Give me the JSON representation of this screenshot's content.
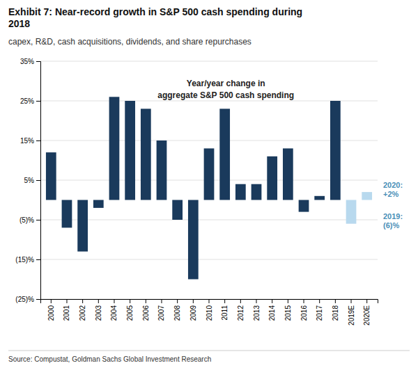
{
  "chart_data": {
    "type": "bar",
    "title": "Exhibit 7: Near-record growth in S&P 500 cash spending during\n2018",
    "subtitle": "capex, R&D, cash acquisitions, dividends, and share repurchases",
    "source": "Source: Compustat, Goldman Sachs Global Investment Research",
    "annotations": [
      "Year/year change in\naggregate S&P 500 cash spending",
      "2019:\n(6)%",
      "2020:\n+2%"
    ],
    "categories": [
      "2000",
      "2001",
      "2002",
      "2003",
      "2004",
      "2005",
      "2006",
      "2007",
      "2008",
      "2009",
      "2010",
      "2011",
      "2012",
      "2013",
      "2014",
      "2015",
      "2016",
      "2017",
      "2018",
      "2019E",
      "2020E"
    ],
    "values": [
      12,
      -7,
      -13,
      -2,
      26,
      25,
      23,
      15,
      -5,
      -20,
      13,
      23,
      4,
      4,
      11,
      13,
      -3,
      1,
      25,
      -6,
      2
    ],
    "colors": [
      "#1a3a5c",
      "#1a3a5c",
      "#1a3a5c",
      "#1a3a5c",
      "#1a3a5c",
      "#1a3a5c",
      "#1a3a5c",
      "#1a3a5c",
      "#1a3a5c",
      "#1a3a5c",
      "#1a3a5c",
      "#1a3a5c",
      "#1a3a5c",
      "#1a3a5c",
      "#1a3a5c",
      "#1a3a5c",
      "#1a3a5c",
      "#1a3a5c",
      "#1a3a5c",
      "#b8d9ee",
      "#b8d9ee"
    ],
    "ylim": [
      -25,
      35
    ],
    "yticks": [
      {
        "value": -25,
        "label": "(25)%"
      },
      {
        "value": -15,
        "label": "(15)%"
      },
      {
        "value": -5,
        "label": "(5)%"
      },
      {
        "value": 5,
        "label": "5%"
      },
      {
        "value": 15,
        "label": "15%"
      },
      {
        "value": 25,
        "label": "25%"
      },
      {
        "value": 35,
        "label": "35%"
      }
    ],
    "grid": true
  }
}
